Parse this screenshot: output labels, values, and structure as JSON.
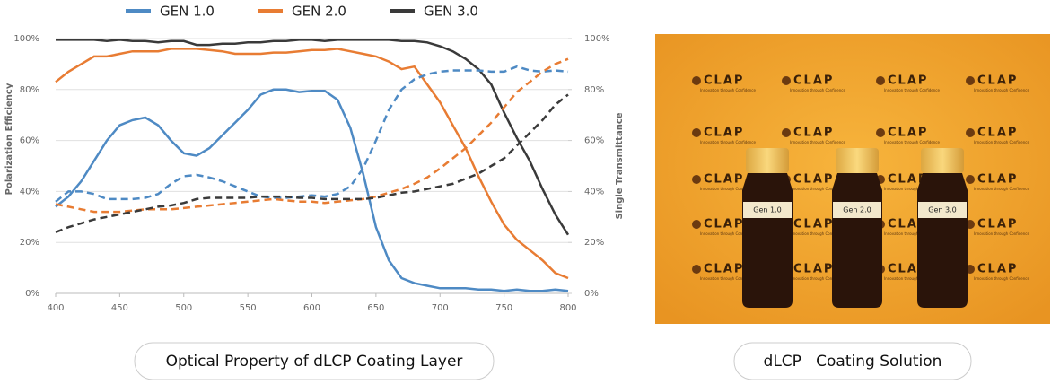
{
  "chart_data": {
    "type": "line",
    "ylabel": "Polarization Efficiency",
    "y2label": "Single Transmittance",
    "x": [
      400,
      410,
      420,
      430,
      440,
      450,
      460,
      470,
      480,
      490,
      500,
      510,
      520,
      530,
      540,
      550,
      560,
      570,
      580,
      590,
      600,
      610,
      620,
      630,
      640,
      650,
      660,
      670,
      680,
      690,
      700,
      710,
      720,
      730,
      740,
      750,
      760,
      770,
      780,
      790,
      800
    ],
    "xlim": [
      400,
      800
    ],
    "xticks": [
      400,
      450,
      500,
      550,
      600,
      650,
      700,
      750,
      800
    ],
    "ylim": [
      0,
      100
    ],
    "yticks": [
      {
        "value": 0,
        "label": "0%"
      },
      {
        "value": 20,
        "label": "20%"
      },
      {
        "value": 40,
        "label": "40%"
      },
      {
        "value": 60,
        "label": "60%"
      },
      {
        "value": 80,
        "label": "80%"
      },
      {
        "value": 100,
        "label": "100%"
      }
    ],
    "y2lim": [
      0,
      100
    ],
    "y2ticks": [
      {
        "value": 0,
        "label": "0%"
      },
      {
        "value": 20,
        "label": "20%"
      },
      {
        "value": 40,
        "label": "40%"
      },
      {
        "value": 60,
        "label": "60%"
      },
      {
        "value": 80,
        "label": "80%"
      },
      {
        "value": 100,
        "label": "100%"
      }
    ],
    "grid": true,
    "series": [
      {
        "name": "GEN 1.0",
        "color": "#4e8ac4",
        "values": [
          34,
          38,
          44,
          52,
          60,
          66,
          68,
          69,
          66,
          60,
          55,
          54,
          57,
          62,
          67,
          72,
          78,
          80,
          80,
          79,
          79.5,
          79.5,
          76,
          65,
          47,
          26,
          13,
          6,
          4,
          3,
          2,
          2,
          2,
          1.5,
          1.5,
          1,
          1.5,
          1,
          1,
          1.5,
          1
        ]
      },
      {
        "name": "GEN 2.0",
        "color": "#e87c33",
        "values": [
          83,
          87,
          90,
          93,
          93,
          94,
          95,
          95,
          95,
          96,
          96,
          96,
          95.5,
          95,
          94,
          94,
          94,
          94.5,
          94.5,
          95,
          95.5,
          95.5,
          96,
          95,
          94,
          93,
          91,
          88,
          89,
          82,
          75,
          66,
          57,
          46,
          36,
          27,
          21,
          17,
          13,
          8,
          6
        ]
      },
      {
        "name": "GEN 3.0",
        "color": "#3a3a3a",
        "values": [
          99.5,
          99.5,
          99.5,
          99.5,
          99,
          99.5,
          99,
          99,
          98.5,
          99,
          99,
          97.5,
          97.5,
          98,
          98,
          98.5,
          98.5,
          99,
          99,
          99.5,
          99.5,
          99,
          99.5,
          99.5,
          99.5,
          99.5,
          99.5,
          99,
          99,
          98.5,
          97,
          95,
          92,
          88,
          82,
          71,
          61,
          52,
          41,
          31,
          23
        ]
      },
      {
        "name": "GEN 1.0",
        "color": "#4e8ac4",
        "axis": "y2",
        "dash": true,
        "values": [
          36,
          40,
          40,
          39,
          37,
          37,
          37,
          37.5,
          39,
          43,
          46,
          46.5,
          45.5,
          44,
          42,
          40,
          38,
          37.5,
          37.5,
          38,
          38.5,
          38,
          39,
          42,
          49,
          60,
          72,
          80,
          84,
          86,
          87,
          87.5,
          87.5,
          87.5,
          87,
          87,
          89,
          87.5,
          87,
          87.5,
          87
        ]
      },
      {
        "name": "GEN 2.0",
        "color": "#e87c33",
        "axis": "y2",
        "dash": true,
        "values": [
          35,
          34,
          33,
          32,
          32,
          32,
          32.5,
          33,
          33,
          33,
          33.5,
          34,
          34.5,
          35,
          35.5,
          36,
          36.5,
          37,
          36.5,
          36,
          36,
          35.5,
          36,
          36.5,
          37,
          38,
          39.5,
          41,
          43,
          45.5,
          49,
          53,
          57,
          62,
          67,
          73,
          79,
          83,
          87,
          90,
          92
        ]
      },
      {
        "name": "GEN 3.0",
        "color": "#3a3a3a",
        "axis": "y2",
        "dash": true,
        "values": [
          24,
          26,
          27.5,
          29,
          30,
          31,
          32,
          33,
          34,
          34.5,
          35.5,
          37,
          37.5,
          37.5,
          37.5,
          37.5,
          38,
          38,
          38,
          37.5,
          37.5,
          37,
          37,
          37,
          37,
          37.5,
          38.5,
          39.5,
          40,
          41,
          42,
          43,
          45,
          47,
          50,
          53,
          58,
          63,
          68,
          74,
          78
        ]
      }
    ]
  },
  "captions": [
    "Optical Property of dLCP Coating Layer",
    "dLCP   Coating Solution"
  ],
  "photo": {
    "logo": "CLAP",
    "tagline": "Innovation through Confidence",
    "bottle_labels": [
      "Gen 1.0",
      "Gen 2.0",
      "Gen 3.0"
    ]
  }
}
